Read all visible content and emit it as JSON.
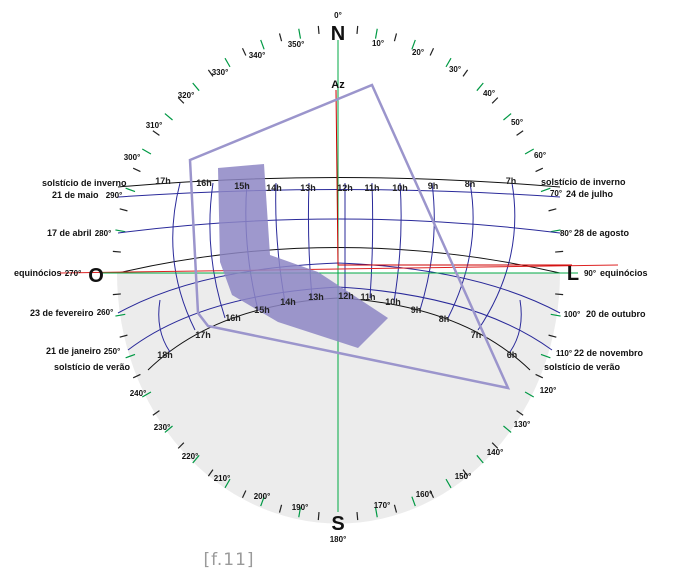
{
  "diagram": {
    "cardinals": {
      "north": "N",
      "south": "S",
      "east": "L",
      "west": "O",
      "north_deg": "0°",
      "south_deg": "180°"
    },
    "azimuth_label": "Az",
    "degree_labels": [
      "10°",
      "20°",
      "30°",
      "40°",
      "50°",
      "60°",
      "70°",
      "80°",
      "90°",
      "100°",
      "110°",
      "120°",
      "130°",
      "140°",
      "150°",
      "160°",
      "170°",
      "190°",
      "200°",
      "210°",
      "220°",
      "230°",
      "240°",
      "250°",
      "260°",
      "270°",
      "280°",
      "290°",
      "300°",
      "310°",
      "320°",
      "330°",
      "340°",
      "350°"
    ],
    "date_labels": {
      "left": [
        "solstício de inverno",
        "21 de maio",
        "17 de abril",
        "equinócios",
        "23 de fevereiro",
        "21 de janeiro",
        "solstício de verão"
      ],
      "right": [
        "solstício de inverno",
        "24 de julho",
        "28 de agosto",
        "equinócios",
        "20 de outubro",
        "22 de novembro",
        "solstício de verão"
      ]
    },
    "hour_labels_top": [
      "17h",
      "16h",
      "15h",
      "14h",
      "13h",
      "12h",
      "11h",
      "10h",
      "9h",
      "8h",
      "7h"
    ],
    "hour_labels_bottom": [
      "18h",
      "17h",
      "16h",
      "15h",
      "14h",
      "13h",
      "12h",
      "11h",
      "10h",
      "9h",
      "8h",
      "7h",
      "6h"
    ],
    "caption": "[f.11]",
    "colors": {
      "sky_fill": "#ececec",
      "day_curve": "#2a2a9a",
      "hour_curve": "#2a2a9a",
      "solstice_curve": "#111111",
      "overlay_outline": "#9b95cc",
      "overlay_fill": "#8d86c4",
      "az_line": "#cc0000",
      "horizon_line": "#dd2222",
      "ns_axis": "#00aa44",
      "tick_green": "#009944"
    }
  }
}
